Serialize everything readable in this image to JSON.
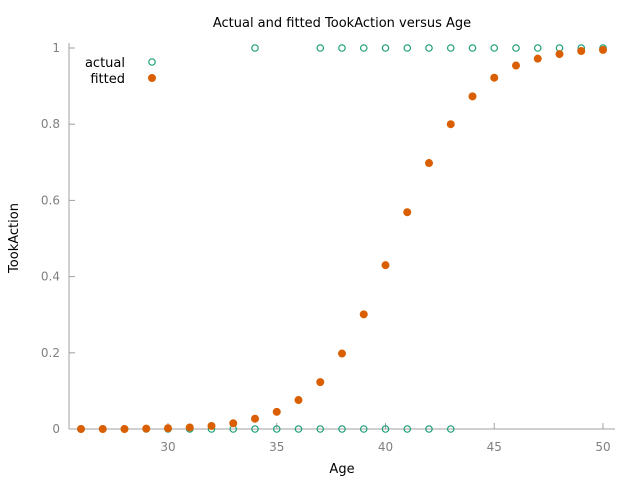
{
  "chart_data": {
    "type": "scatter",
    "title": "Actual and fitted TookAction versus Age",
    "xlabel": "Age",
    "ylabel": "TookAction",
    "xlim": [
      25.5,
      50.5
    ],
    "ylim": [
      0,
      1
    ],
    "x_ticks": [
      30,
      35,
      40,
      45,
      50
    ],
    "x_tick_labels": [
      "30",
      "35",
      "40",
      "45",
      "50"
    ],
    "y_ticks": [
      0,
      0.2,
      0.4,
      0.6,
      0.8,
      1
    ],
    "y_tick_labels": [
      "0",
      "0.2",
      "0.4",
      "0.6",
      "0.8",
      "1"
    ],
    "grid": false,
    "legend_position": "top-left",
    "series": [
      {
        "name": "actual",
        "marker": "open-circle",
        "color": "#1b9e77",
        "points": [
          [
            26,
            0
          ],
          [
            27,
            0
          ],
          [
            28,
            0
          ],
          [
            29,
            0
          ],
          [
            30,
            0
          ],
          [
            31,
            0
          ],
          [
            32,
            0
          ],
          [
            33,
            0
          ],
          [
            34,
            0
          ],
          [
            34,
            1
          ],
          [
            35,
            0
          ],
          [
            36,
            0
          ],
          [
            37,
            0
          ],
          [
            37,
            1
          ],
          [
            38,
            0
          ],
          [
            38,
            1
          ],
          [
            39,
            0
          ],
          [
            39,
            1
          ],
          [
            40,
            0
          ],
          [
            40,
            1
          ],
          [
            41,
            0
          ],
          [
            41,
            1
          ],
          [
            42,
            0
          ],
          [
            42,
            1
          ],
          [
            43,
            0
          ],
          [
            43,
            1
          ],
          [
            44,
            1
          ],
          [
            45,
            1
          ],
          [
            46,
            1
          ],
          [
            47,
            1
          ],
          [
            48,
            1
          ],
          [
            49,
            1
          ],
          [
            50,
            1
          ]
        ]
      },
      {
        "name": "fitted",
        "marker": "filled-circle",
        "color": "#d95f02",
        "points": [
          [
            26,
            0.0
          ],
          [
            27,
            0.0
          ],
          [
            28,
            0.0
          ],
          [
            29,
            0.001
          ],
          [
            30,
            0.002
          ],
          [
            31,
            0.004
          ],
          [
            32,
            0.008
          ],
          [
            33,
            0.015
          ],
          [
            34,
            0.027
          ],
          [
            35,
            0.045
          ],
          [
            36,
            0.076
          ],
          [
            37,
            0.123
          ],
          [
            38,
            0.198
          ],
          [
            39,
            0.301
          ],
          [
            40,
            0.43
          ],
          [
            41,
            0.569
          ],
          [
            42,
            0.698
          ],
          [
            43,
            0.8
          ],
          [
            44,
            0.873
          ],
          [
            45,
            0.922
          ],
          [
            46,
            0.954
          ],
          [
            47,
            0.972
          ],
          [
            48,
            0.984
          ],
          [
            49,
            0.992
          ],
          [
            50,
            0.995
          ]
        ]
      }
    ]
  }
}
